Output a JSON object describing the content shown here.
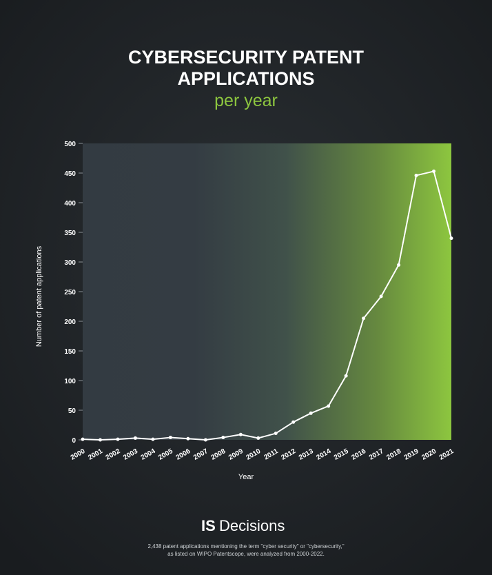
{
  "chart_data": {
    "type": "line",
    "title": [
      "CYBERSECURITY PATENT",
      "APPLICATIONS"
    ],
    "subtitle": "per year",
    "y_label": "Number of patent applications",
    "x_label": "Year",
    "categories": [
      "2000",
      "2001",
      "2002",
      "2003",
      "2004",
      "2005",
      "2006",
      "2007",
      "2008",
      "2009",
      "2010",
      "2011",
      "2012",
      "2013",
      "2014",
      "2015",
      "2016",
      "2017",
      "2018",
      "2019",
      "2020",
      "2021"
    ],
    "values": [
      1,
      0,
      1,
      3,
      1,
      4,
      2,
      0,
      4,
      9,
      3,
      11,
      30,
      45,
      57,
      108,
      205,
      242,
      295,
      446,
      453,
      340
    ],
    "color": "#ffffff",
    "ylim": [
      0,
      500
    ],
    "yticks": [
      0,
      50,
      100,
      150,
      200,
      250,
      300,
      350,
      400,
      450,
      500
    ],
    "brand": {
      "mark": "IS",
      "name": "Decisions"
    },
    "footnote": [
      "2,438 patent applications mentioning the term \"cyber security\" or \"cybersecurity,\"",
      "as listed on WIPO Patentscope, were analyzed from 2000-2022."
    ]
  }
}
